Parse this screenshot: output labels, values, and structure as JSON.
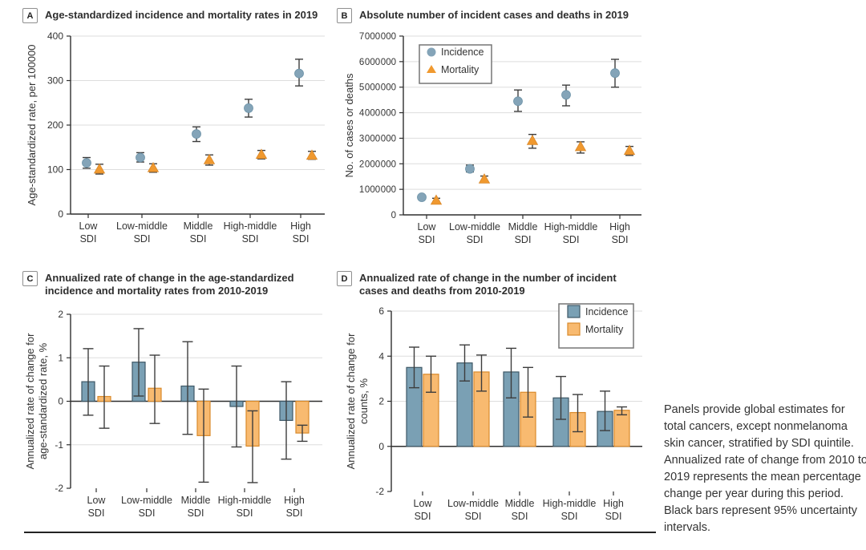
{
  "figure": {
    "caption": "Panels provide global estimates for total cancers, except nonmelanoma skin cancer, stratified by SDI quintile. Annualized rate of change from 2010 to 2019 represents the mean percentage change per year during this period. Black bars represent 95% uncertainty intervals.",
    "colors": {
      "incidence_marker": "#84A4B8",
      "mortality_marker": "#F0992F",
      "incidence_bar": "#7AA0B4",
      "incidence_bar_border": "#3E5866",
      "mortality_bar": "#F8BA70",
      "mortality_bar_border": "#D98A2B",
      "error_bar": "#3D3D3D",
      "gridline": "#DDDDDD",
      "axis": "#2F2F2F",
      "text": "#333333"
    }
  },
  "chart_data": [
    {
      "panel": "A",
      "title": "Age-standardized incidence and mortality rates in 2019",
      "type": "scatter",
      "categories": [
        "Low",
        "Low-middle",
        "Middle",
        "High-middle",
        "High"
      ],
      "category_suffix": "SDI",
      "ylabel_lines": [
        "Age-standardized rate, per 100000"
      ],
      "ylim": [
        0,
        400
      ],
      "yticks": [
        0,
        100,
        200,
        300,
        400
      ],
      "grid": true,
      "series": [
        {
          "name": "Incidence",
          "marker": "circle",
          "values": [
            115,
            127,
            180,
            238,
            316
          ],
          "ci_low": [
            103,
            117,
            163,
            218,
            288
          ],
          "ci_high": [
            127,
            138,
            196,
            258,
            348
          ]
        },
        {
          "name": "Mortality",
          "marker": "triangle",
          "values": [
            101,
            104,
            122,
            134,
            132
          ],
          "ci_low": [
            90,
            94,
            110,
            124,
            123
          ],
          "ci_high": [
            112,
            113,
            133,
            143,
            141
          ]
        }
      ]
    },
    {
      "panel": "B",
      "title": "Absolute number of incident cases and deaths in 2019",
      "type": "scatter",
      "categories": [
        "Low",
        "Low-middle",
        "Middle",
        "High-middle",
        "High"
      ],
      "category_suffix": "SDI",
      "ylabel_lines": [
        "No. of cases or deaths"
      ],
      "ylim": [
        0,
        7000000
      ],
      "yticks": [
        0,
        1000000,
        2000000,
        3000000,
        4000000,
        5000000,
        6000000,
        7000000
      ],
      "ytick_labels": [
        "0",
        "1 000 000",
        "2 000 000",
        "3 000 000",
        "4 000 000",
        "5 000 000",
        "6 000 000",
        "7 000 000"
      ],
      "grid": true,
      "legend_position": "top-left",
      "series": [
        {
          "name": "Incidence",
          "marker": "circle",
          "values": [
            690000,
            1800000,
            4450000,
            4700000,
            5550000
          ],
          "ci_low": [
            620000,
            1680000,
            4050000,
            4270000,
            5000000
          ],
          "ci_high": [
            760000,
            1950000,
            4890000,
            5080000,
            6090000
          ]
        },
        {
          "name": "Mortality",
          "marker": "triangle",
          "values": [
            570000,
            1400000,
            2910000,
            2670000,
            2520000
          ],
          "ci_low": [
            500000,
            1290000,
            2610000,
            2420000,
            2330000
          ],
          "ci_high": [
            650000,
            1520000,
            3150000,
            2860000,
            2680000
          ]
        }
      ]
    },
    {
      "panel": "C",
      "title": "Annualized rate of change in the age-standardized incidence and mortality rates from 2010-2019",
      "type": "bar",
      "categories": [
        "Low",
        "Low-middle",
        "Middle",
        "High-middle",
        "High"
      ],
      "category_suffix": "SDI",
      "ylabel_lines": [
        "Annualized rate of change for",
        "age-standardized rate, %"
      ],
      "ylim": [
        -2,
        2
      ],
      "yticks": [
        -2,
        -1,
        0,
        1,
        2
      ],
      "grid": true,
      "series": [
        {
          "name": "Incidence",
          "values": [
            0.45,
            0.9,
            0.35,
            -0.12,
            -0.44
          ],
          "ci_low": [
            -0.32,
            0.12,
            -0.76,
            -1.05,
            -1.33
          ],
          "ci_high": [
            1.21,
            1.67,
            1.37,
            0.81,
            0.45
          ]
        },
        {
          "name": "Mortality",
          "values": [
            0.11,
            0.3,
            -0.79,
            -1.03,
            -0.73
          ],
          "ci_low": [
            -0.62,
            -0.51,
            -1.86,
            -1.87,
            -0.92
          ],
          "ci_high": [
            0.81,
            1.06,
            0.28,
            -0.22,
            -0.55
          ]
        }
      ]
    },
    {
      "panel": "D",
      "title": "Annualized rate of change in the number of incident cases and deaths from 2010-2019",
      "type": "bar",
      "categories": [
        "Low",
        "Low-middle",
        "Middle",
        "High-middle",
        "High"
      ],
      "category_suffix": "SDI",
      "ylabel_lines": [
        "Annualized rate of change for",
        "counts, %"
      ],
      "ylim": [
        -2,
        6
      ],
      "yticks": [
        -2,
        0,
        2,
        4,
        6
      ],
      "grid": true,
      "legend_position": "top-right",
      "series": [
        {
          "name": "Incidence",
          "values": [
            3.5,
            3.7,
            3.3,
            2.15,
            1.55
          ],
          "ci_low": [
            2.6,
            2.9,
            2.15,
            1.2,
            0.7
          ],
          "ci_high": [
            4.4,
            4.5,
            4.35,
            3.1,
            2.45
          ]
        },
        {
          "name": "Mortality",
          "values": [
            3.2,
            3.3,
            2.4,
            1.5,
            1.6
          ],
          "ci_low": [
            2.4,
            2.45,
            1.3,
            0.65,
            1.4
          ],
          "ci_high": [
            4.0,
            4.05,
            3.5,
            2.3,
            1.75
          ]
        }
      ]
    }
  ]
}
